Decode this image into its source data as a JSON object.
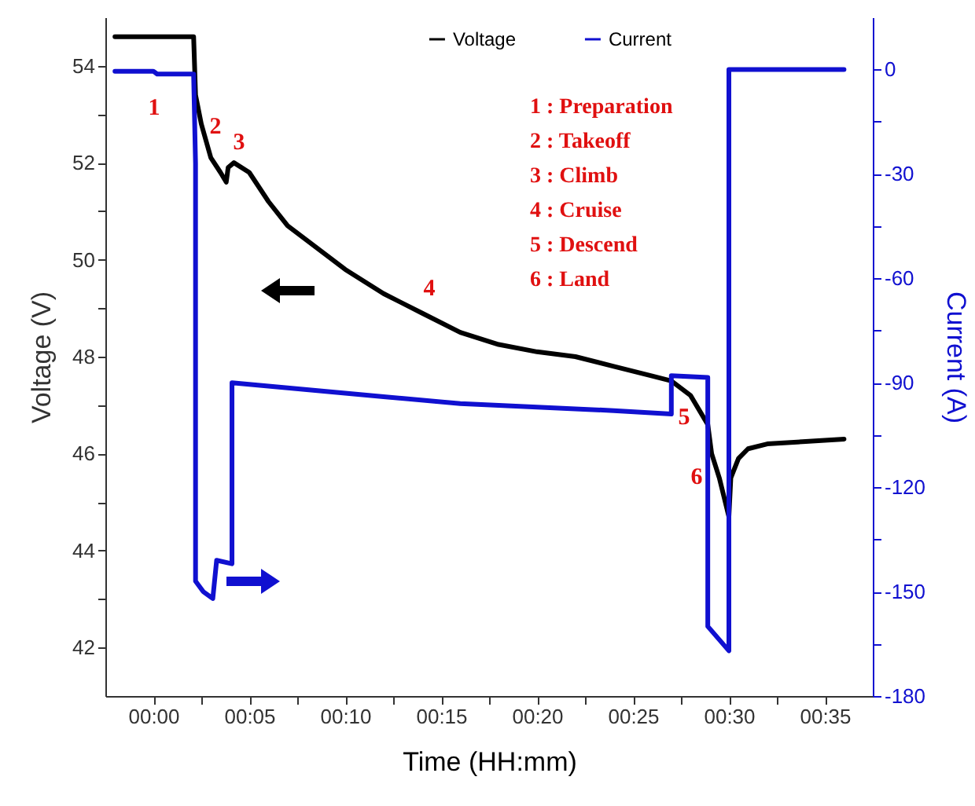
{
  "chart_data": {
    "type": "line",
    "xlabel": "Time (HH:mm)",
    "ylabel": "Voltage (V)",
    "y2label": "Current (A)",
    "xlim": [
      -2.5,
      37.5
    ],
    "ylim": [
      41,
      55
    ],
    "y2lim": [
      -180,
      15
    ],
    "xticks": [
      {
        "value": 0,
        "label": "00:00"
      },
      {
        "value": 2.5,
        "label": null
      },
      {
        "value": 5,
        "label": "00:05"
      },
      {
        "value": 7.5,
        "label": null
      },
      {
        "value": 10,
        "label": "00:10"
      },
      {
        "value": 12.5,
        "label": null
      },
      {
        "value": 15,
        "label": "00:15"
      },
      {
        "value": 17.5,
        "label": null
      },
      {
        "value": 20,
        "label": "00:20"
      },
      {
        "value": 22.5,
        "label": null
      },
      {
        "value": 25,
        "label": "00:25"
      },
      {
        "value": 27.5,
        "label": null
      },
      {
        "value": 30,
        "label": "00:30"
      },
      {
        "value": 32.5,
        "label": null
      },
      {
        "value": 35,
        "label": "00:35"
      }
    ],
    "yticks": [
      42,
      {
        "value": 43,
        "label": null
      },
      44,
      {
        "value": 45,
        "label": null
      },
      46,
      {
        "value": 47,
        "label": null
      },
      48,
      {
        "value": 49,
        "label": null
      },
      50,
      {
        "value": 51,
        "label": null
      },
      52,
      {
        "value": 53,
        "label": null
      },
      54
    ],
    "y2ticks": [
      -180,
      {
        "value": -165,
        "label": null
      },
      -150,
      {
        "value": -135,
        "label": null
      },
      -120,
      {
        "value": -105,
        "label": null
      },
      -90,
      {
        "value": -75,
        "label": null
      },
      -60,
      {
        "value": -45,
        "label": null
      },
      -30,
      {
        "value": -15,
        "label": null
      },
      0
    ],
    "legend": "top",
    "series": [
      {
        "name": "Voltage",
        "color": "#000000",
        "x": [
          -2,
          2.1,
          2.15,
          2.2,
          2.5,
          3.0,
          3.5,
          3.8,
          3.9,
          4.2,
          5,
          6,
          7,
          8,
          10,
          12,
          14,
          16,
          18,
          20,
          22,
          24,
          26,
          27,
          28,
          28.9,
          29.1,
          29.5,
          30.0,
          30.1,
          30.5,
          31,
          32,
          34,
          36
        ],
        "values": [
          54.6,
          54.6,
          54.0,
          53.4,
          52.8,
          52.1,
          51.8,
          51.6,
          51.9,
          52.0,
          51.8,
          51.2,
          50.7,
          50.4,
          49.8,
          49.3,
          48.9,
          48.5,
          48.25,
          48.1,
          48.0,
          47.8,
          47.6,
          47.5,
          47.2,
          46.6,
          46.0,
          45.5,
          44.7,
          45.5,
          45.9,
          46.1,
          46.2,
          46.25,
          46.3
        ]
      },
      {
        "name": "Current",
        "color": "#1010d0",
        "axis": "y2",
        "x": [
          -2,
          0,
          0.2,
          2.1,
          2.2,
          2.2,
          2.2,
          2.6,
          3.1,
          3.3,
          4.1,
          4.1,
          8,
          12,
          16,
          20,
          24,
          27,
          27,
          28.9,
          28.9,
          30.0,
          30.0,
          33,
          36
        ],
        "values": [
          -0.5,
          -0.5,
          -1.3,
          -1.3,
          -27,
          -76,
          -147,
          -150,
          -152,
          -141,
          -142,
          -90,
          -92,
          -94,
          -96,
          -97,
          -98,
          -99,
          -88,
          -88.5,
          -160,
          -167,
          0,
          0,
          0
        ]
      }
    ],
    "annotations": [
      "1",
      "2",
      "3",
      "4",
      "5",
      "6",
      "1 : Preparation",
      "2 : Takeoff",
      "3 : Climb",
      "4 : Cruise",
      "5 : Descend",
      "6 : Land"
    ]
  }
}
